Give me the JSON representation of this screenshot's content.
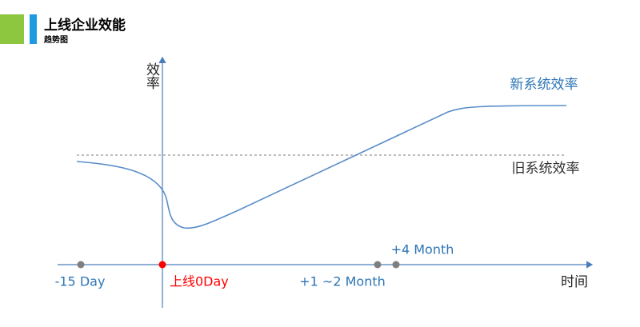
{
  "header": {
    "title": "上线企业效能",
    "subtitle": "趋势图"
  },
  "axes": {
    "y_label": "效率",
    "x_label": "时间"
  },
  "curves": {
    "new_system": "新系统效率",
    "old_system": "旧系统效率"
  },
  "milestones": [
    "-15 Day",
    "上线0Day",
    "+1 ~2 Month",
    "+4 Month"
  ]
}
